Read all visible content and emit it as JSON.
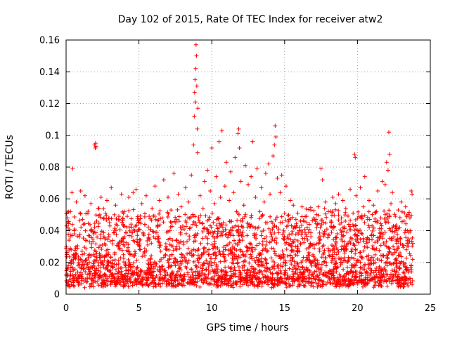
{
  "chart_data": {
    "type": "scatter",
    "title": "Day 102 of 2015, Rate Of TEC Index for receiver atw2",
    "xlabel": "GPS time / hours",
    "ylabel": "ROTI / TECUs",
    "xlim": [
      0,
      25
    ],
    "ylim": [
      0,
      0.16
    ],
    "xticks": [
      0,
      5,
      10,
      15,
      20,
      25
    ],
    "yticks": [
      0,
      0.02,
      0.04,
      0.06,
      0.08,
      0.1,
      0.12,
      0.14,
      0.16
    ],
    "xtick_labels": [
      "0",
      "5",
      "10",
      "15",
      "20",
      "25"
    ],
    "ytick_labels": [
      "0",
      "0.02",
      "0.04",
      "0.06",
      "0.08",
      "0.1",
      "0.12",
      "0.14",
      "0.16"
    ],
    "grid": true,
    "legend": "none",
    "marker": "plus",
    "color": "#ff0000",
    "x_data_max": 23.8,
    "series": [
      {
        "points": [
          [
            0.0,
            0.012
          ],
          [
            0.05,
            0.025
          ],
          [
            0.1,
            0.048
          ],
          [
            0.15,
            0.018
          ],
          [
            0.2,
            0.034
          ],
          [
            0.3,
            0.052
          ],
          [
            0.35,
            0.028
          ],
          [
            0.4,
            0.064
          ],
          [
            0.45,
            0.079
          ],
          [
            0.5,
            0.022
          ],
          [
            0.6,
            0.041
          ],
          [
            0.7,
            0.058
          ],
          [
            0.8,
            0.014
          ],
          [
            0.9,
            0.036
          ],
          [
            1.0,
            0.065
          ],
          [
            1.1,
            0.027
          ],
          [
            1.2,
            0.044
          ],
          [
            1.3,
            0.062
          ],
          [
            1.4,
            0.019
          ],
          [
            1.5,
            0.051
          ],
          [
            1.6,
            0.033
          ],
          [
            1.7,
            0.057
          ],
          [
            1.8,
            0.012
          ],
          [
            1.9,
            0.038
          ],
          [
            1.95,
            0.094
          ],
          [
            2.0,
            0.092
          ],
          [
            2.02,
            0.095
          ],
          [
            2.05,
            0.093
          ],
          [
            2.1,
            0.046
          ],
          [
            2.2,
            0.054
          ],
          [
            2.3,
            0.023
          ],
          [
            2.4,
            0.061
          ],
          [
            2.5,
            0.031
          ],
          [
            2.6,
            0.048
          ],
          [
            2.7,
            0.016
          ],
          [
            2.8,
            0.059
          ],
          [
            2.9,
            0.026
          ],
          [
            3.0,
            0.043
          ],
          [
            3.1,
            0.067
          ],
          [
            3.2,
            0.021
          ],
          [
            3.3,
            0.039
          ],
          [
            3.4,
            0.056
          ],
          [
            3.5,
            0.013
          ],
          [
            3.6,
            0.047
          ],
          [
            3.7,
            0.029
          ],
          [
            3.8,
            0.063
          ],
          [
            3.9,
            0.035
          ],
          [
            4.0,
            0.052
          ],
          [
            4.1,
            0.018
          ],
          [
            4.2,
            0.049
          ],
          [
            4.3,
            0.061
          ],
          [
            4.4,
            0.025
          ],
          [
            4.5,
            0.042
          ],
          [
            4.6,
            0.064
          ],
          [
            4.7,
            0.033
          ],
          [
            4.8,
            0.066
          ],
          [
            4.9,
            0.017
          ],
          [
            5.0,
            0.045
          ],
          [
            5.1,
            0.028
          ],
          [
            5.2,
            0.057
          ],
          [
            5.3,
            0.038
          ],
          [
            5.4,
            0.014
          ],
          [
            5.5,
            0.062
          ],
          [
            5.6,
            0.031
          ],
          [
            5.7,
            0.049
          ],
          [
            5.8,
            0.022
          ],
          [
            5.9,
            0.054
          ],
          [
            6.0,
            0.036
          ],
          [
            6.1,
            0.068
          ],
          [
            6.2,
            0.019
          ],
          [
            6.3,
            0.043
          ],
          [
            6.4,
            0.059
          ],
          [
            6.5,
            0.027
          ],
          [
            6.6,
            0.048
          ],
          [
            6.7,
            0.072
          ],
          [
            6.8,
            0.015
          ],
          [
            6.9,
            0.039
          ],
          [
            7.0,
            0.061
          ],
          [
            7.1,
            0.024
          ],
          [
            7.2,
            0.053
          ],
          [
            7.3,
            0.034
          ],
          [
            7.4,
            0.076
          ],
          [
            7.5,
            0.018
          ],
          [
            7.6,
            0.047
          ],
          [
            7.7,
            0.063
          ],
          [
            7.8,
            0.029
          ],
          [
            7.9,
            0.055
          ],
          [
            8.0,
            0.021
          ],
          [
            8.1,
            0.041
          ],
          [
            8.2,
            0.067
          ],
          [
            8.3,
            0.033
          ],
          [
            8.4,
            0.058
          ],
          [
            8.5,
            0.026
          ],
          [
            8.6,
            0.075
          ],
          [
            8.7,
            0.044
          ],
          [
            8.75,
            0.094
          ],
          [
            8.8,
            0.112
          ],
          [
            8.82,
            0.127
          ],
          [
            8.85,
            0.135
          ],
          [
            8.87,
            0.121
          ],
          [
            8.9,
            0.142
          ],
          [
            8.92,
            0.157
          ],
          [
            8.95,
            0.15
          ],
          [
            8.97,
            0.131
          ],
          [
            9.0,
            0.104
          ],
          [
            9.02,
            0.089
          ],
          [
            9.05,
            0.117
          ],
          [
            9.1,
            0.048
          ],
          [
            9.2,
            0.062
          ],
          [
            9.3,
            0.024
          ],
          [
            9.4,
            0.054
          ],
          [
            9.5,
            0.071
          ],
          [
            9.6,
            0.036
          ],
          [
            9.7,
            0.078
          ],
          [
            9.8,
            0.047
          ],
          [
            9.9,
            0.065
          ],
          [
            10.0,
            0.092
          ],
          [
            10.1,
            0.029
          ],
          [
            10.2,
            0.057
          ],
          [
            10.3,
            0.074
          ],
          [
            10.4,
            0.038
          ],
          [
            10.5,
            0.096
          ],
          [
            10.6,
            0.061
          ],
          [
            10.7,
            0.103
          ],
          [
            10.8,
            0.045
          ],
          [
            10.9,
            0.068
          ],
          [
            11.0,
            0.083
          ],
          [
            11.1,
            0.031
          ],
          [
            11.2,
            0.059
          ],
          [
            11.3,
            0.077
          ],
          [
            11.4,
            0.042
          ],
          [
            11.5,
            0.064
          ],
          [
            11.6,
            0.086
          ],
          [
            11.7,
            0.052
          ],
          [
            11.8,
            0.101
          ],
          [
            11.85,
            0.104
          ],
          [
            11.9,
            0.092
          ],
          [
            12.0,
            0.071
          ],
          [
            12.1,
            0.034
          ],
          [
            12.2,
            0.056
          ],
          [
            12.3,
            0.081
          ],
          [
            12.4,
            0.027
          ],
          [
            12.5,
            0.069
          ],
          [
            12.6,
            0.044
          ],
          [
            12.7,
            0.074
          ],
          [
            12.8,
            0.096
          ],
          [
            12.9,
            0.038
          ],
          [
            13.0,
            0.061
          ],
          [
            13.1,
            0.079
          ],
          [
            13.2,
            0.021
          ],
          [
            13.3,
            0.052
          ],
          [
            13.4,
            0.067
          ],
          [
            13.5,
            0.033
          ],
          [
            13.6,
            0.058
          ],
          [
            13.7,
            0.076
          ],
          [
            13.8,
            0.045
          ],
          [
            13.9,
            0.082
          ],
          [
            14.0,
            0.063
          ],
          [
            14.1,
            0.029
          ],
          [
            14.2,
            0.087
          ],
          [
            14.3,
            0.094
          ],
          [
            14.35,
            0.106
          ],
          [
            14.4,
            0.099
          ],
          [
            14.5,
            0.073
          ],
          [
            14.6,
            0.041
          ],
          [
            14.7,
            0.064
          ],
          [
            14.8,
            0.075
          ],
          [
            14.9,
            0.035
          ],
          [
            15.0,
            0.051
          ],
          [
            15.1,
            0.068
          ],
          [
            15.2,
            0.024
          ],
          [
            15.3,
            0.047
          ],
          [
            15.4,
            0.059
          ],
          [
            15.5,
            0.032
          ],
          [
            15.6,
            0.056
          ],
          [
            15.7,
            0.018
          ],
          [
            15.8,
            0.043
          ],
          [
            15.9,
            0.051
          ],
          [
            16.0,
            0.027
          ],
          [
            16.1,
            0.046
          ],
          [
            16.2,
            0.055
          ],
          [
            16.3,
            0.014
          ],
          [
            16.4,
            0.039
          ],
          [
            16.5,
            0.049
          ],
          [
            16.6,
            0.023
          ],
          [
            16.7,
            0.044
          ],
          [
            16.8,
            0.053
          ],
          [
            16.9,
            0.031
          ],
          [
            17.0,
            0.048
          ],
          [
            17.1,
            0.019
          ],
          [
            17.2,
            0.042
          ],
          [
            17.3,
            0.055
          ],
          [
            17.4,
            0.034
          ],
          [
            17.5,
            0.079
          ],
          [
            17.6,
            0.072
          ],
          [
            17.7,
            0.026
          ],
          [
            17.8,
            0.058
          ],
          [
            17.9,
            0.041
          ],
          [
            18.0,
            0.052
          ],
          [
            18.1,
            0.015
          ],
          [
            18.2,
            0.046
          ],
          [
            18.3,
            0.061
          ],
          [
            18.4,
            0.029
          ],
          [
            18.5,
            0.057
          ],
          [
            18.6,
            0.038
          ],
          [
            18.7,
            0.063
          ],
          [
            18.8,
            0.022
          ],
          [
            18.9,
            0.048
          ],
          [
            19.0,
            0.059
          ],
          [
            19.1,
            0.033
          ],
          [
            19.2,
            0.054
          ],
          [
            19.3,
            0.017
          ],
          [
            19.4,
            0.044
          ],
          [
            19.5,
            0.066
          ],
          [
            19.6,
            0.027
          ],
          [
            19.7,
            0.051
          ],
          [
            19.8,
            0.088
          ],
          [
            19.85,
            0.086
          ],
          [
            19.9,
            0.062
          ],
          [
            20.0,
            0.036
          ],
          [
            20.1,
            0.049
          ],
          [
            20.2,
            0.067
          ],
          [
            20.3,
            0.023
          ],
          [
            20.4,
            0.055
          ],
          [
            20.5,
            0.074
          ],
          [
            20.6,
            0.032
          ],
          [
            20.7,
            0.047
          ],
          [
            20.8,
            0.059
          ],
          [
            20.9,
            0.019
          ],
          [
            21.0,
            0.043
          ],
          [
            21.1,
            0.056
          ],
          [
            21.2,
            0.028
          ],
          [
            21.3,
            0.052
          ],
          [
            21.4,
            0.065
          ],
          [
            21.5,
            0.035
          ],
          [
            21.6,
            0.048
          ],
          [
            21.7,
            0.071
          ],
          [
            21.8,
            0.024
          ],
          [
            21.9,
            0.069
          ],
          [
            22.0,
            0.083
          ],
          [
            22.1,
            0.078
          ],
          [
            22.15,
            0.102
          ],
          [
            22.2,
            0.088
          ],
          [
            22.3,
            0.057
          ],
          [
            22.4,
            0.064
          ],
          [
            22.5,
            0.036
          ],
          [
            22.6,
            0.049
          ],
          [
            22.7,
            0.021
          ],
          [
            22.8,
            0.053
          ],
          [
            22.9,
            0.042
          ],
          [
            23.0,
            0.058
          ],
          [
            23.1,
            0.031
          ],
          [
            23.2,
            0.046
          ],
          [
            23.3,
            0.055
          ],
          [
            23.4,
            0.017
          ],
          [
            23.5,
            0.039
          ],
          [
            23.6,
            0.048
          ],
          [
            23.7,
            0.065
          ],
          [
            23.75,
            0.063
          ],
          [
            23.8,
            0.032
          ]
        ]
      }
    ]
  }
}
